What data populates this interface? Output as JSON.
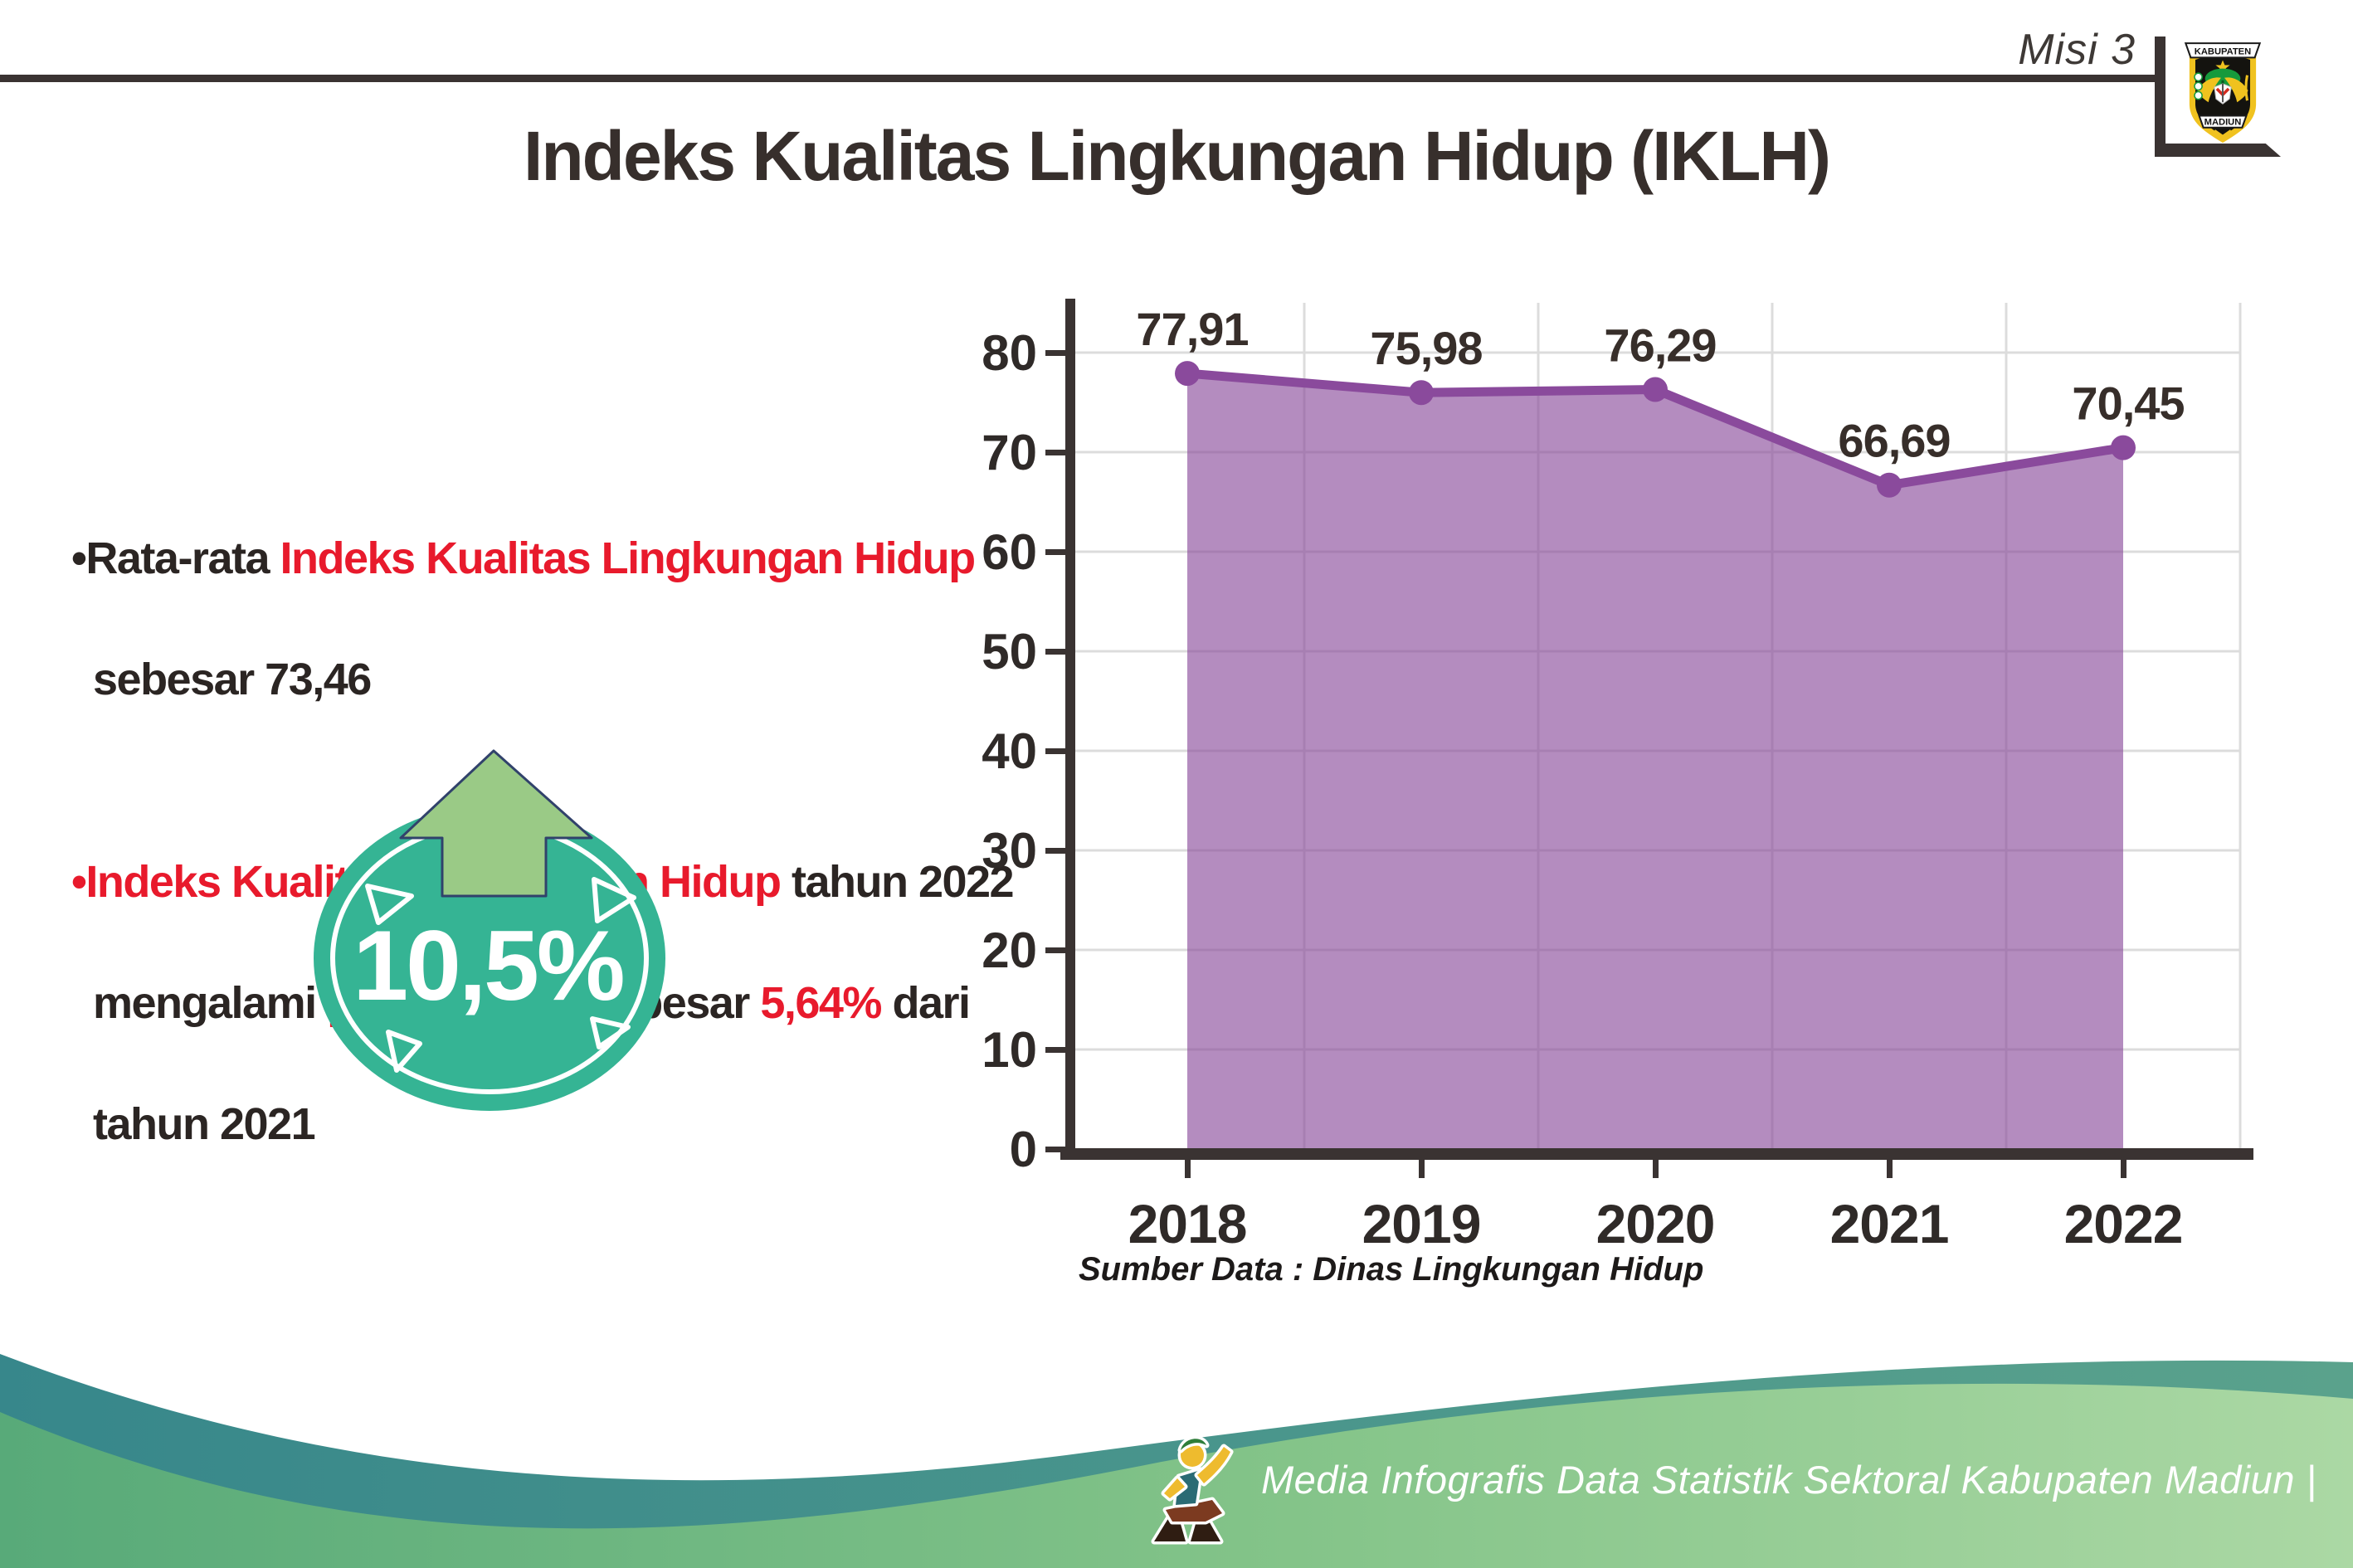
{
  "header": {
    "misi": "Misi 3",
    "title": "Indeks Kualitas Lingkungan Hidup (IKLH)"
  },
  "logo": {
    "top_text": "KABUPATEN",
    "bottom_text": "MADIUN"
  },
  "bullets": [
    {
      "lines": [
        [
          {
            "t": "•",
            "c": "dark"
          },
          {
            "t": "Rata-rata ",
            "c": "dark"
          },
          {
            "t": "Indeks Kualitas Lingkungan Hidup",
            "c": "red"
          }
        ],
        [
          {
            "t": "sebesar 73,46",
            "c": "dark"
          }
        ]
      ]
    },
    {
      "lines": [
        [
          {
            "t": "•",
            "c": "red"
          },
          {
            "t": "Indeks Kualitas Lingkungan Hidup",
            "c": "red"
          },
          {
            "t": " tahun 2022",
            "c": "dark"
          }
        ],
        [
          {
            "t": "mengalami ",
            "c": "dark"
          },
          {
            "t": "peningkatan",
            "c": "red"
          },
          {
            "t": " sebesar ",
            "c": "dark"
          },
          {
            "t": "5,64%",
            "c": "red"
          },
          {
            "t": " dari",
            "c": "dark"
          }
        ],
        [
          {
            "t": "tahun 2021",
            "c": "dark"
          }
        ]
      ]
    }
  ],
  "badge": {
    "value": "10,5%",
    "circle_color": "#35b494",
    "arrow_color": "#9aca86"
  },
  "chart_data": {
    "type": "area",
    "title": "",
    "categories": [
      "2018",
      "2019",
      "2020",
      "2021",
      "2022"
    ],
    "values": [
      77.91,
      75.98,
      76.29,
      66.69,
      70.45
    ],
    "value_labels": [
      "77,91",
      "75,98",
      "76,29",
      "66,69",
      "70,45"
    ],
    "xlabel": "",
    "ylabel": "",
    "ylim": [
      0,
      80
    ],
    "ytick_step": 10,
    "grid": "on",
    "legend": "none",
    "line_color": "#8a4a9c",
    "fill_color": "rgba(134,70,152,0.62)"
  },
  "source": {
    "text": "Sumber Data : Dinas Lingkungan Hidup"
  },
  "footer": {
    "text": "Media Infografis Data Statistik Sektoral Kabupaten Madiun |"
  }
}
